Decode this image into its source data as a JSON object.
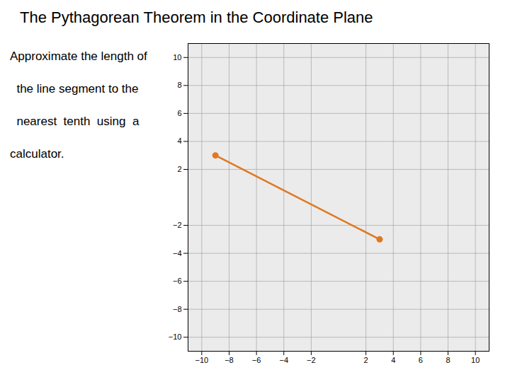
{
  "chart_data": {
    "type": "line",
    "title": "The Pythagorean Theorem in the Coordinate Plane",
    "annotations": [
      "Approximate the length of",
      "  the line segment to the",
      "  nearest  tenth  using  a",
      "calculator."
    ],
    "x": [
      -9,
      3
    ],
    "values": [
      3,
      -3
    ],
    "color": "#E07820",
    "marker": "circle",
    "xlim": [
      -11,
      11
    ],
    "ylim": [
      -11,
      11
    ],
    "xticks": [
      -10,
      -8,
      -6,
      -4,
      -2,
      2,
      4,
      6,
      8,
      10
    ],
    "yticks": [
      -10,
      -8,
      -6,
      -4,
      -2,
      2,
      4,
      6,
      8,
      10
    ],
    "grid": true
  }
}
